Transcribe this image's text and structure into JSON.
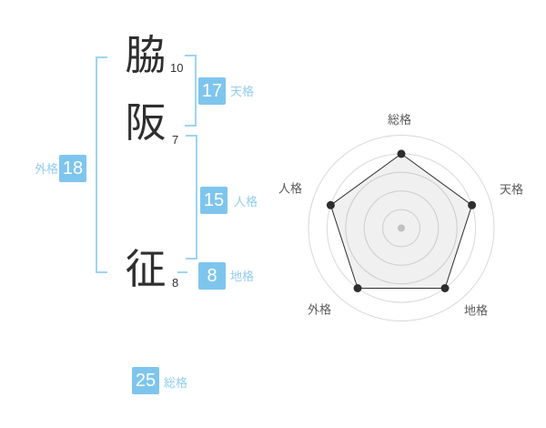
{
  "name": {
    "characters": [
      {
        "char": "脇",
        "strokes": "10"
      },
      {
        "char": "阪",
        "strokes": "7"
      },
      {
        "char": "征",
        "strokes": "8"
      }
    ],
    "kaku": {
      "tenkaku": {
        "label": "天格",
        "value": "17"
      },
      "jinkaku": {
        "label": "人格",
        "value": "15"
      },
      "chikaku": {
        "label": "地格",
        "value": "8"
      },
      "gaikaku": {
        "label": "外格",
        "value": "18"
      },
      "soukaku": {
        "label": "総格",
        "value": "25"
      }
    }
  },
  "colors": {
    "badge_bg": "#7ec5ee",
    "badge_text": "#ffffff",
    "kaku_label": "#92ccef",
    "bracket": "#9ed5f3",
    "kanji": "#2f2f2f",
    "stroke_count": "#333333"
  },
  "chart_data": {
    "type": "radar",
    "categories": [
      "総格",
      "天格",
      "地格",
      "外格",
      "人格"
    ],
    "values": [
      4,
      4,
      4,
      4,
      4
    ],
    "scale_max": 5,
    "rings": 5,
    "grid": "concentric-circles",
    "legend": "none",
    "ring_color": "#d9d9d9",
    "line_color": "#2e2e2e",
    "point_color": "#2e2e2e",
    "fill_color": "rgba(0,0,0,0.06)",
    "center_dot_color": "#c0c0c0",
    "label_color": "#595959"
  }
}
